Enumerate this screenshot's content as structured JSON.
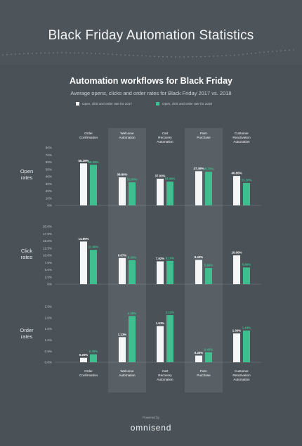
{
  "header": {
    "title": "Black Friday Automation Statistics",
    "subtitle": "Automation workflows for Black Friday",
    "description": "Average opens, clicks and order rates for Black Friday 2017 vs. 2018"
  },
  "legend": [
    {
      "label": "Open, click and order rate for 2017",
      "color": "#f4f6f8"
    },
    {
      "label": "Open, click and order rate for 2018",
      "color": "#3fbf8f"
    }
  ],
  "footer": {
    "powered_by": "Powered by",
    "brand": "omnisend"
  },
  "colors": {
    "background": "#4a5157",
    "highlight_column": "#586066",
    "series_2017": "#f4f6f8",
    "series_2018": "#3fbf8f"
  },
  "chart_data": [
    {
      "type": "bar",
      "title": "Open rates",
      "categories": [
        "Order Confirmation",
        "Welcome Automation",
        "Cart Recovery Automation",
        "Post-Purchase",
        "Customer Reactivation Automation"
      ],
      "series": [
        {
          "name": "Open, click and order rate for 2017",
          "values": [
            58.26,
            38.89,
            37.03,
            47.46,
            40.85
          ],
          "labels": [
            "58.26%",
            "38.89%",
            "37.03%",
            "47.46%",
            "40.85%"
          ]
        },
        {
          "name": "Open, click and order rate for 2018",
          "values": [
            56.28,
            32.0,
            33.0,
            46.7,
            31.2
          ],
          "labels": [
            "56.28%",
            "32.00%",
            "33.00%",
            "46.70%",
            "31.20%"
          ]
        }
      ],
      "yticks": [
        "80%",
        "70%",
        "60%",
        "50%",
        "40%",
        "30%",
        "20%",
        "10%",
        "0%"
      ],
      "ylim": [
        0,
        80
      ]
    },
    {
      "type": "bar",
      "title": "Click rates",
      "categories": [
        "Order Confirmation",
        "Welcome Automation",
        "Cart Recovery Automation",
        "Post-Purchase",
        "Customer Reactivation Automation"
      ],
      "series": [
        {
          "name": "Open, click and order rate for 2017",
          "values": [
            14.8,
            9.07,
            7.92,
            8.43,
            10.0
          ],
          "labels": [
            "14.80%",
            "9.07%",
            "7.92%",
            "8.43%",
            "10.00%"
          ]
        },
        {
          "name": "Open, click and order rate for 2018",
          "values": [
            11.9,
            8.3,
            8.1,
            5.6,
            5.8
          ],
          "labels": [
            "11.90%",
            "8.30%",
            "8.10%",
            "5.60%",
            "5.80%"
          ]
        }
      ],
      "yticks": [
        "20.0%",
        "17.5%",
        "15.0%",
        "12.5%",
        "10.0%",
        "7.5%",
        "5.0%",
        "2.5%",
        "0%"
      ],
      "ylim": [
        0,
        20
      ]
    },
    {
      "type": "bar",
      "title": "Order rates",
      "categories": [
        "Order Confirmation",
        "Welcome Automation",
        "Cart Recovery Automation",
        "Post-Purchase",
        "Customer Reactivation Automation"
      ],
      "series": [
        {
          "name": "Open, click and order rate for 2017",
          "values": [
            0.2,
            1.13,
            1.63,
            0.3,
            1.3
          ],
          "labels": [
            "0.20%",
            "1.13%",
            "1.63%",
            "0.30%",
            "1.30%"
          ]
        },
        {
          "name": "Open, click and order rate for 2018",
          "values": [
            0.36,
            2.08,
            2.12,
            0.45,
            1.43
          ],
          "labels": [
            "0.36%",
            "2.08%",
            "2.12%",
            "0.45%",
            "1.43%"
          ]
        }
      ],
      "yticks": [
        "2.5%",
        "2.0%",
        "1.5%",
        "1.0%",
        "0.5%",
        "0.0%"
      ],
      "ylim": [
        0,
        2.5
      ]
    }
  ]
}
